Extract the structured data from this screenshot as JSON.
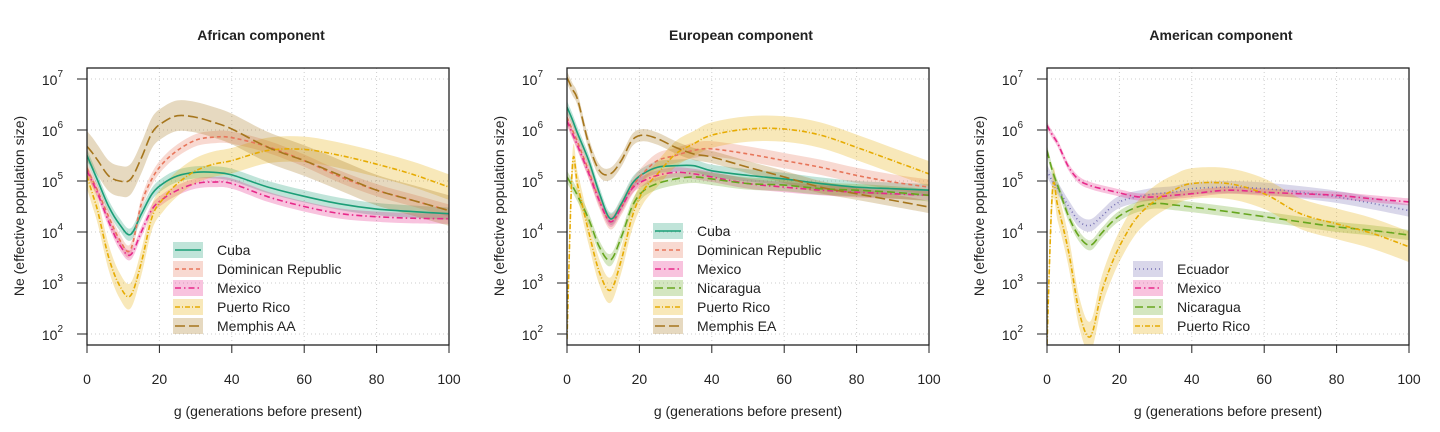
{
  "chart_data": [
    {
      "type": "line",
      "title": "African component",
      "xlabel": "g (generations before present)",
      "ylabel": "Ne (effective population size)",
      "xlim": [
        0,
        100
      ],
      "ylim": [
        60,
        16000000
      ],
      "yscale": "log",
      "xticks": [
        "0",
        "20",
        "40",
        "60",
        "80",
        "100"
      ],
      "yticks": [
        "2",
        "3",
        "4",
        "5",
        "6",
        "7"
      ],
      "grid": true,
      "legend_position": "bottom-center",
      "x": [
        0,
        1.5,
        3,
        6,
        9,
        12,
        15,
        18,
        21,
        25,
        30,
        35,
        40,
        50,
        60,
        70,
        80,
        90,
        100
      ],
      "series": [
        {
          "name": "Cuba",
          "color": "#1b9e77",
          "dash": "solid",
          "ci_log10": 0.12,
          "log10_values": [
            5.5,
            5.25,
            5.0,
            4.5,
            4.15,
            3.95,
            4.35,
            4.75,
            4.95,
            5.1,
            5.17,
            5.17,
            5.12,
            4.88,
            4.7,
            4.55,
            4.45,
            4.4,
            4.36
          ]
        },
        {
          "name": "Dominican Republic",
          "color": "#e7755a",
          "dash": "4,3",
          "ci_log10": 0.12,
          "log10_values": [
            5.25,
            5.02,
            4.8,
            4.3,
            3.85,
            3.65,
            4.55,
            5.05,
            5.35,
            5.6,
            5.8,
            5.86,
            5.85,
            5.67,
            5.4,
            5.08,
            4.82,
            4.62,
            4.42
          ]
        },
        {
          "name": "Mexico",
          "color": "#e7298a",
          "dash": "6,3,1.5,3",
          "ci_log10": 0.1,
          "log10_values": [
            5.2,
            4.98,
            4.75,
            4.2,
            3.75,
            3.55,
            4.0,
            4.45,
            4.65,
            4.82,
            4.95,
            4.98,
            4.95,
            4.69,
            4.5,
            4.36,
            4.3,
            4.27,
            4.26
          ]
        },
        {
          "name": "Puerto Rico",
          "color": "#e6ab02",
          "dash": "5,2,1,2",
          "ci_log10": 0.25,
          "log10_values": [
            5.1,
            4.75,
            4.4,
            3.5,
            2.95,
            2.75,
            3.4,
            4.3,
            4.65,
            4.95,
            5.2,
            5.33,
            5.4,
            5.6,
            5.62,
            5.5,
            5.33,
            5.13,
            4.88
          ]
        },
        {
          "name": "Memphis AA",
          "color": "#a6761d",
          "dash": "10,4",
          "ci_log10": 0.3,
          "log10_values": [
            5.68,
            5.55,
            5.4,
            5.1,
            5.0,
            5.03,
            5.45,
            5.95,
            6.15,
            6.28,
            6.25,
            6.15,
            6.02,
            5.66,
            5.4,
            5.11,
            4.82,
            4.62,
            4.42
          ]
        }
      ]
    },
    {
      "type": "line",
      "title": "European component",
      "xlabel": "g (generations before present)",
      "ylabel": "Ne (effective population size)",
      "xlim": [
        0,
        100
      ],
      "ylim": [
        60,
        16000000
      ],
      "yscale": "log",
      "xticks": [
        "0",
        "20",
        "40",
        "60",
        "80",
        "100"
      ],
      "yticks": [
        "2",
        "3",
        "4",
        "5",
        "6",
        "7"
      ],
      "grid": true,
      "legend_position": "bottom-center",
      "x": [
        0,
        1.5,
        3,
        6,
        9,
        12,
        15,
        18,
        21,
        25,
        30,
        35,
        40,
        50,
        60,
        70,
        80,
        90,
        100
      ],
      "series": [
        {
          "name": "Cuba",
          "color": "#1b9e77",
          "dash": "solid",
          "ci_log10": 0.12,
          "log10_values": [
            6.45,
            6.2,
            5.92,
            5.4,
            4.75,
            4.26,
            4.55,
            4.95,
            5.14,
            5.27,
            5.3,
            5.3,
            5.2,
            5.11,
            5.04,
            4.95,
            4.88,
            4.85,
            4.82
          ]
        },
        {
          "name": "Dominican Republic",
          "color": "#e7755a",
          "dash": "4,3",
          "ci_log10": 0.15,
          "log10_values": [
            6.25,
            6.0,
            5.75,
            5.2,
            4.6,
            4.2,
            4.48,
            4.88,
            5.15,
            5.4,
            5.5,
            5.6,
            5.63,
            5.53,
            5.4,
            5.27,
            5.11,
            4.98,
            4.88
          ]
        },
        {
          "name": "Mexico",
          "color": "#e7298a",
          "dash": "6,3,1.5,3",
          "ci_log10": 0.1,
          "log10_values": [
            6.18,
            5.93,
            5.68,
            5.15,
            4.6,
            4.2,
            4.48,
            4.85,
            5.0,
            5.11,
            5.17,
            5.14,
            5.08,
            4.95,
            4.88,
            4.82,
            4.78,
            4.75,
            4.72
          ]
        },
        {
          "name": "Nicaragua",
          "color": "#66a61e",
          "dash": "8,4",
          "ci_log10": 0.12,
          "log10_values": [
            5.08,
            4.9,
            4.7,
            4.25,
            3.7,
            3.45,
            3.9,
            4.5,
            4.8,
            4.95,
            5.04,
            5.08,
            5.04,
            4.95,
            4.92,
            4.85,
            4.82,
            4.78,
            4.72
          ]
        },
        {
          "name": "Puerto Rico",
          "color": "#e6ab02",
          "dash": "5,2,1,2",
          "ci_log10": 0.25,
          "log10_values": [
            1.9,
            5.3,
            4.9,
            4.0,
            3.2,
            2.86,
            3.45,
            4.3,
            4.8,
            5.14,
            5.53,
            5.73,
            5.9,
            6.02,
            6.02,
            5.9,
            5.66,
            5.4,
            5.14
          ]
        },
        {
          "name": "Memphis EA",
          "color": "#a6761d",
          "dash": "10,4",
          "ci_log10": 0.12,
          "log10_values": [
            7.03,
            6.8,
            6.58,
            5.73,
            5.2,
            5.14,
            5.4,
            5.8,
            5.9,
            5.83,
            5.66,
            5.53,
            5.47,
            5.27,
            5.08,
            4.88,
            4.75,
            4.62,
            4.49
          ]
        }
      ]
    },
    {
      "type": "line",
      "title": "American component",
      "xlabel": "g (generations before present)",
      "ylabel": "Ne (effective population size)",
      "xlim": [
        0,
        100
      ],
      "ylim": [
        60,
        16000000
      ],
      "yscale": "log",
      "xticks": [
        "0",
        "20",
        "40",
        "60",
        "80",
        "100"
      ],
      "yticks": [
        "2",
        "3",
        "4",
        "5",
        "6",
        "7"
      ],
      "grid": true,
      "legend_position": "bottom-center",
      "x": [
        0,
        1.5,
        3,
        6,
        9,
        12,
        15,
        18,
        21,
        25,
        30,
        35,
        40,
        50,
        60,
        70,
        80,
        90,
        100
      ],
      "series": [
        {
          "name": "Ecuador",
          "color": "#7570b3",
          "dash": "1,3",
          "ci_log10": 0.12,
          "log10_values": [
            5.2,
            5.0,
            4.85,
            4.5,
            4.2,
            4.13,
            4.3,
            4.5,
            4.62,
            4.69,
            4.75,
            4.78,
            4.85,
            4.88,
            4.85,
            4.78,
            4.69,
            4.56,
            4.42
          ]
        },
        {
          "name": "Mexico",
          "color": "#e7298a",
          "dash": "6,3,1.5,3",
          "ci_log10": 0.07,
          "log10_values": [
            6.09,
            5.9,
            5.73,
            5.27,
            5.01,
            4.91,
            4.85,
            4.8,
            4.75,
            4.69,
            4.69,
            4.72,
            4.75,
            4.82,
            4.78,
            4.75,
            4.72,
            4.65,
            4.59
          ]
        },
        {
          "name": "Nicaragua",
          "color": "#66a61e",
          "dash": "8,4",
          "ci_log10": 0.1,
          "log10_values": [
            5.6,
            5.2,
            4.9,
            4.3,
            3.9,
            3.74,
            3.97,
            4.2,
            4.36,
            4.49,
            4.56,
            4.53,
            4.49,
            4.4,
            4.3,
            4.2,
            4.1,
            4.03,
            3.94
          ]
        },
        {
          "name": "Puerto Rico",
          "color": "#e6ab02",
          "dash": "5,2,1,2",
          "ci_log10": 0.3,
          "log10_values": [
            1.8,
            4.8,
            4.5,
            3.6,
            2.4,
            1.95,
            2.8,
            3.4,
            3.85,
            4.3,
            4.62,
            4.82,
            4.95,
            4.95,
            4.75,
            4.36,
            4.16,
            3.97,
            3.71
          ]
        }
      ]
    }
  ]
}
